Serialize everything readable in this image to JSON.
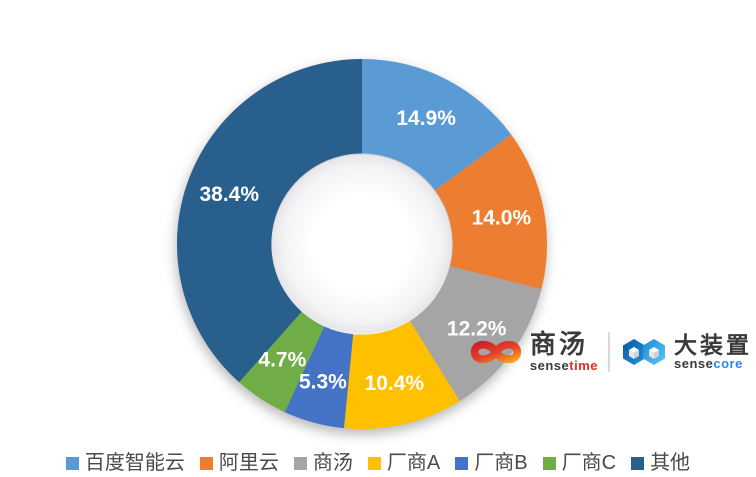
{
  "chart_data": {
    "type": "pie",
    "subtype": "donut",
    "title": "",
    "categories": [
      "百度智能云",
      "阿里云",
      "商汤",
      "厂商A",
      "厂商B",
      "厂商C",
      "其他"
    ],
    "values": [
      14.9,
      14.0,
      12.2,
      10.4,
      5.3,
      4.7,
      38.4
    ],
    "data_labels": [
      "14.9%",
      "14.0%",
      "12.2%",
      "10.4%",
      "5.3%",
      "4.7%",
      "38.4%"
    ],
    "colors": [
      "#5B9BD5",
      "#ED7D31",
      "#A5A5A5",
      "#FFC000",
      "#4472C4",
      "#70AD47",
      "#295F8D"
    ],
    "start_angle_deg": 0,
    "direction": "clockwise",
    "donut_hole_ratio": 0.49,
    "data_label_color": "#FFFFFF",
    "legend_position": "bottom",
    "legend_text_color": "#4a4a4a"
  },
  "branding": {
    "sensetime": {
      "cn": "商汤",
      "en_sense": "sense",
      "en_time": "time"
    },
    "sensecore": {
      "cn": "大装置",
      "en_sense": "sense",
      "en_core": "core"
    },
    "sensetime_red": "#E0301E",
    "sensecore_blue": "#2E86E5",
    "brand_text_dark": "#3B3B3B"
  }
}
